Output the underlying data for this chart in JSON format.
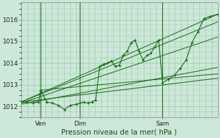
{
  "xlabel": "Pression niveau de la mer( hPa )",
  "bg_color": "#cce8d8",
  "grid_color": "#a0c8b0",
  "line_color": "#1a6e1a",
  "ylim": [
    1011.5,
    1016.8
  ],
  "tick_labels_y": [
    1012,
    1013,
    1014,
    1015,
    1016
  ],
  "xlim": [
    0,
    1
  ],
  "xtick_positions": [
    0.1,
    0.3,
    0.72
  ],
  "xtick_labels": [
    "Ven",
    "Dim",
    "Sam"
  ],
  "vline_positions": [
    0.1,
    0.3,
    0.72
  ],
  "main_line_x": [
    0.0,
    0.03,
    0.06,
    0.09,
    0.1,
    0.13,
    0.16,
    0.19,
    0.22,
    0.25,
    0.28,
    0.3,
    0.32,
    0.34,
    0.36,
    0.38,
    0.4,
    0.42,
    0.44,
    0.46,
    0.48,
    0.5,
    0.52,
    0.54,
    0.56,
    0.58,
    0.6,
    0.62,
    0.64,
    0.66,
    0.68,
    0.7,
    0.72,
    0.75,
    0.78,
    0.81,
    0.84,
    0.87,
    0.9,
    0.93,
    0.96,
    1.0
  ],
  "main_line_y": [
    1012.2,
    1012.2,
    1012.15,
    1012.2,
    1012.75,
    1012.2,
    1012.15,
    1012.05,
    1011.85,
    1012.05,
    1012.1,
    1012.15,
    1012.2,
    1012.15,
    1012.2,
    1012.3,
    1013.85,
    1013.95,
    1014.0,
    1014.1,
    1013.85,
    1013.9,
    1014.35,
    1014.55,
    1014.95,
    1015.05,
    1014.55,
    1014.15,
    1014.35,
    1014.45,
    1014.75,
    1015.05,
    1013.1,
    1013.25,
    1013.45,
    1013.75,
    1014.15,
    1014.95,
    1015.45,
    1016.05,
    1016.15,
    1016.25
  ],
  "trend_lines": [
    {
      "x": [
        0.0,
        1.0
      ],
      "y": [
        1012.2,
        1016.25
      ]
    },
    {
      "x": [
        0.0,
        1.0
      ],
      "y": [
        1012.2,
        1015.9
      ]
    },
    {
      "x": [
        0.0,
        1.0
      ],
      "y": [
        1012.15,
        1015.2
      ]
    },
    {
      "x": [
        0.0,
        1.0
      ],
      "y": [
        1012.1,
        1013.8
      ]
    },
    {
      "x": [
        0.0,
        1.0
      ],
      "y": [
        1012.2,
        1013.3
      ]
    },
    {
      "x": [
        0.1,
        1.0
      ],
      "y": [
        1012.75,
        1013.5
      ]
    }
  ],
  "n_vgrid": 32
}
